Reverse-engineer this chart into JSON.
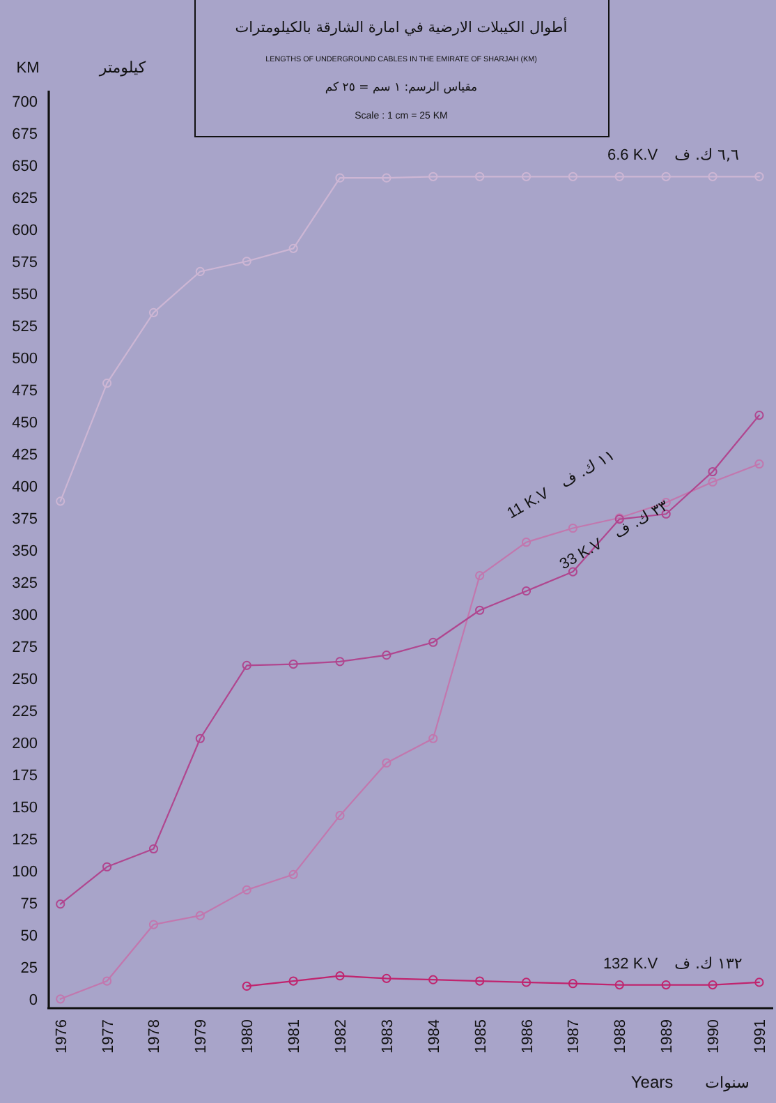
{
  "chart_data": {
    "type": "line",
    "title": "أطوال الكيبلات الارضية في امارة الشارقة بالكيلومترات",
    "subtitle": "LENGTHS OF UNDERGROUND CABLES IN THE EMIRATE OF SHARJAH (KM)",
    "ylabel": "KM",
    "xlabel": "Years",
    "x": [
      1976,
      1977,
      1978,
      1979,
      1980,
      1981,
      1982,
      1983,
      1984,
      1985,
      1986,
      1987,
      1988,
      1989,
      1990,
      1991
    ],
    "series": [
      {
        "name": "6.6 K.V",
        "color": "#cdb6d4",
        "values": [
          388,
          480,
          535,
          567,
          575,
          585,
          640,
          640,
          641,
          641,
          641,
          641,
          641,
          641,
          641,
          641
        ]
      },
      {
        "name": "11 K.V",
        "color": "#c277ae",
        "values": [
          0,
          14,
          58,
          65,
          85,
          97,
          143,
          184,
          203,
          330,
          356,
          367,
          375,
          387,
          403,
          417
        ]
      },
      {
        "name": "33 K.V",
        "color": "#b0468f",
        "values": [
          74,
          103,
          117,
          203,
          260,
          261,
          263,
          268,
          278,
          303,
          318,
          333,
          374,
          378,
          411,
          455
        ]
      },
      {
        "name": "132 K.V",
        "color": "#c0246e",
        "values": [
          null,
          null,
          null,
          null,
          10,
          14,
          18,
          16,
          15,
          14,
          13,
          12,
          11,
          11,
          11,
          13
        ]
      }
    ],
    "annotations": [
      "٦,٦ ك. ف",
      "١١ ك. ف",
      "٣٣ ك. ف",
      "١٣٢ ك. ف",
      "كيلومتر",
      "سنوات",
      "مقياس الرسم: ١ سم = ٢٥ كم",
      "Scale : 1 cm = 25 KM"
    ],
    "xlim": [
      1975.75,
      1991.3
    ],
    "ylim": [
      -5,
      708
    ],
    "xticks": [
      1976,
      1977,
      1978,
      1979,
      1980,
      1981,
      1982,
      1983,
      1984,
      1985,
      1986,
      1987,
      1988,
      1989,
      1990,
      1991
    ],
    "yticks": [
      0,
      25,
      50,
      75,
      100,
      125,
      150,
      175,
      200,
      225,
      250,
      275,
      300,
      325,
      350,
      375,
      400,
      425,
      450,
      475,
      500,
      525,
      550,
      575,
      600,
      625,
      650,
      675,
      700
    ],
    "grid": false,
    "legend": false,
    "marker": "circle",
    "line_style": "solid"
  }
}
